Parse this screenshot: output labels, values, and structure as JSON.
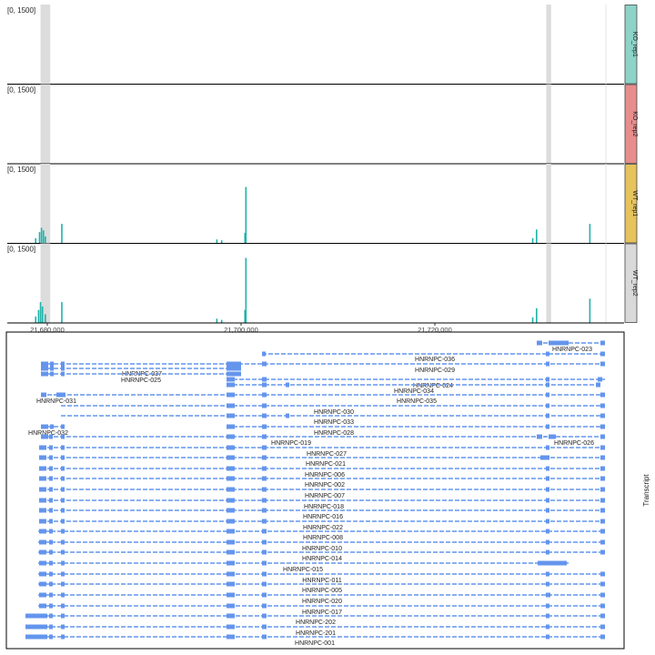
{
  "chart_data": {
    "type": "area",
    "tracks": [
      {
        "name": "KO_rep1",
        "range_label": "[0, 1500]",
        "color": "#8dd3c7",
        "peaks": []
      },
      {
        "name": "KO_rep2",
        "range_label": "[0, 1500]",
        "color": "#e88d8d",
        "peaks": []
      },
      {
        "name": "WT_rep1",
        "range_label": "[0, 1500]",
        "color": "#e6c35c",
        "peaks": [
          {
            "x": 21678800,
            "y": 120
          },
          {
            "x": 21679200,
            "y": 260
          },
          {
            "x": 21679400,
            "y": 360
          },
          {
            "x": 21679600,
            "y": 300
          },
          {
            "x": 21679800,
            "y": 160
          },
          {
            "x": 21681500,
            "y": 450
          },
          {
            "x": 21697500,
            "y": 90
          },
          {
            "x": 21698000,
            "y": 70
          },
          {
            "x": 21700400,
            "y": 240
          },
          {
            "x": 21700500,
            "y": 1300
          },
          {
            "x": 21730100,
            "y": 120
          },
          {
            "x": 21730500,
            "y": 320
          },
          {
            "x": 21736000,
            "y": 450
          }
        ]
      },
      {
        "name": "WT_rep2",
        "range_label": "[0, 1500]",
        "color": "#d9d9d9",
        "peaks": [
          {
            "x": 21678800,
            "y": 150
          },
          {
            "x": 21679100,
            "y": 300
          },
          {
            "x": 21679300,
            "y": 480
          },
          {
            "x": 21679500,
            "y": 380
          },
          {
            "x": 21679800,
            "y": 200
          },
          {
            "x": 21681500,
            "y": 480
          },
          {
            "x": 21697500,
            "y": 100
          },
          {
            "x": 21698000,
            "y": 70
          },
          {
            "x": 21700400,
            "y": 300
          },
          {
            "x": 21700500,
            "y": 1500
          },
          {
            "x": 21730100,
            "y": 130
          },
          {
            "x": 21730500,
            "y": 340
          },
          {
            "x": 21736000,
            "y": 560
          }
        ]
      }
    ],
    "x_ticks": [
      "21,680,000",
      "21,700,000",
      "21,720,000"
    ],
    "x_tick_values": [
      21680000,
      21700000,
      21720000
    ],
    "highlight_regions": [
      [
        21679300,
        21680300
      ],
      [
        21731500,
        21732000
      ]
    ],
    "ylim": [
      0,
      1500
    ],
    "transcript_panel_label": "Transcript",
    "transcripts": [
      "HNRNPC-023",
      "HNRNPC-036",
      "HNRNPC-029",
      "HNRNPC-037",
      "HNRNPC-025",
      "HNRNPC-024",
      "HNRNPC-034",
      "HNRNPC-031",
      "HNRNPC-035",
      "HNRNPC-030",
      "HNRNPC-033",
      "HNRNPC-032",
      "HNRNPC-028",
      "HNRNPC-019",
      "HNRNPC-026",
      "HNRNPC-027",
      "HNRNPC-021",
      "HNRNPC-006",
      "HNRNPC-002",
      "HNRNPC-007",
      "HNRNPC-018",
      "HNRNPC-016",
      "HNRNPC-022",
      "HNRNPC-008",
      "HNRNPC-010",
      "HNRNPC-014",
      "HNRNPC-015",
      "HNRNPC-011",
      "HNRNPC-005",
      "HNRNPC-020",
      "HNRNPC-017",
      "HNRNPC-202",
      "HNRNPC-201",
      "HNRNPC-001"
    ],
    "transcript_color": "#6495ed"
  }
}
